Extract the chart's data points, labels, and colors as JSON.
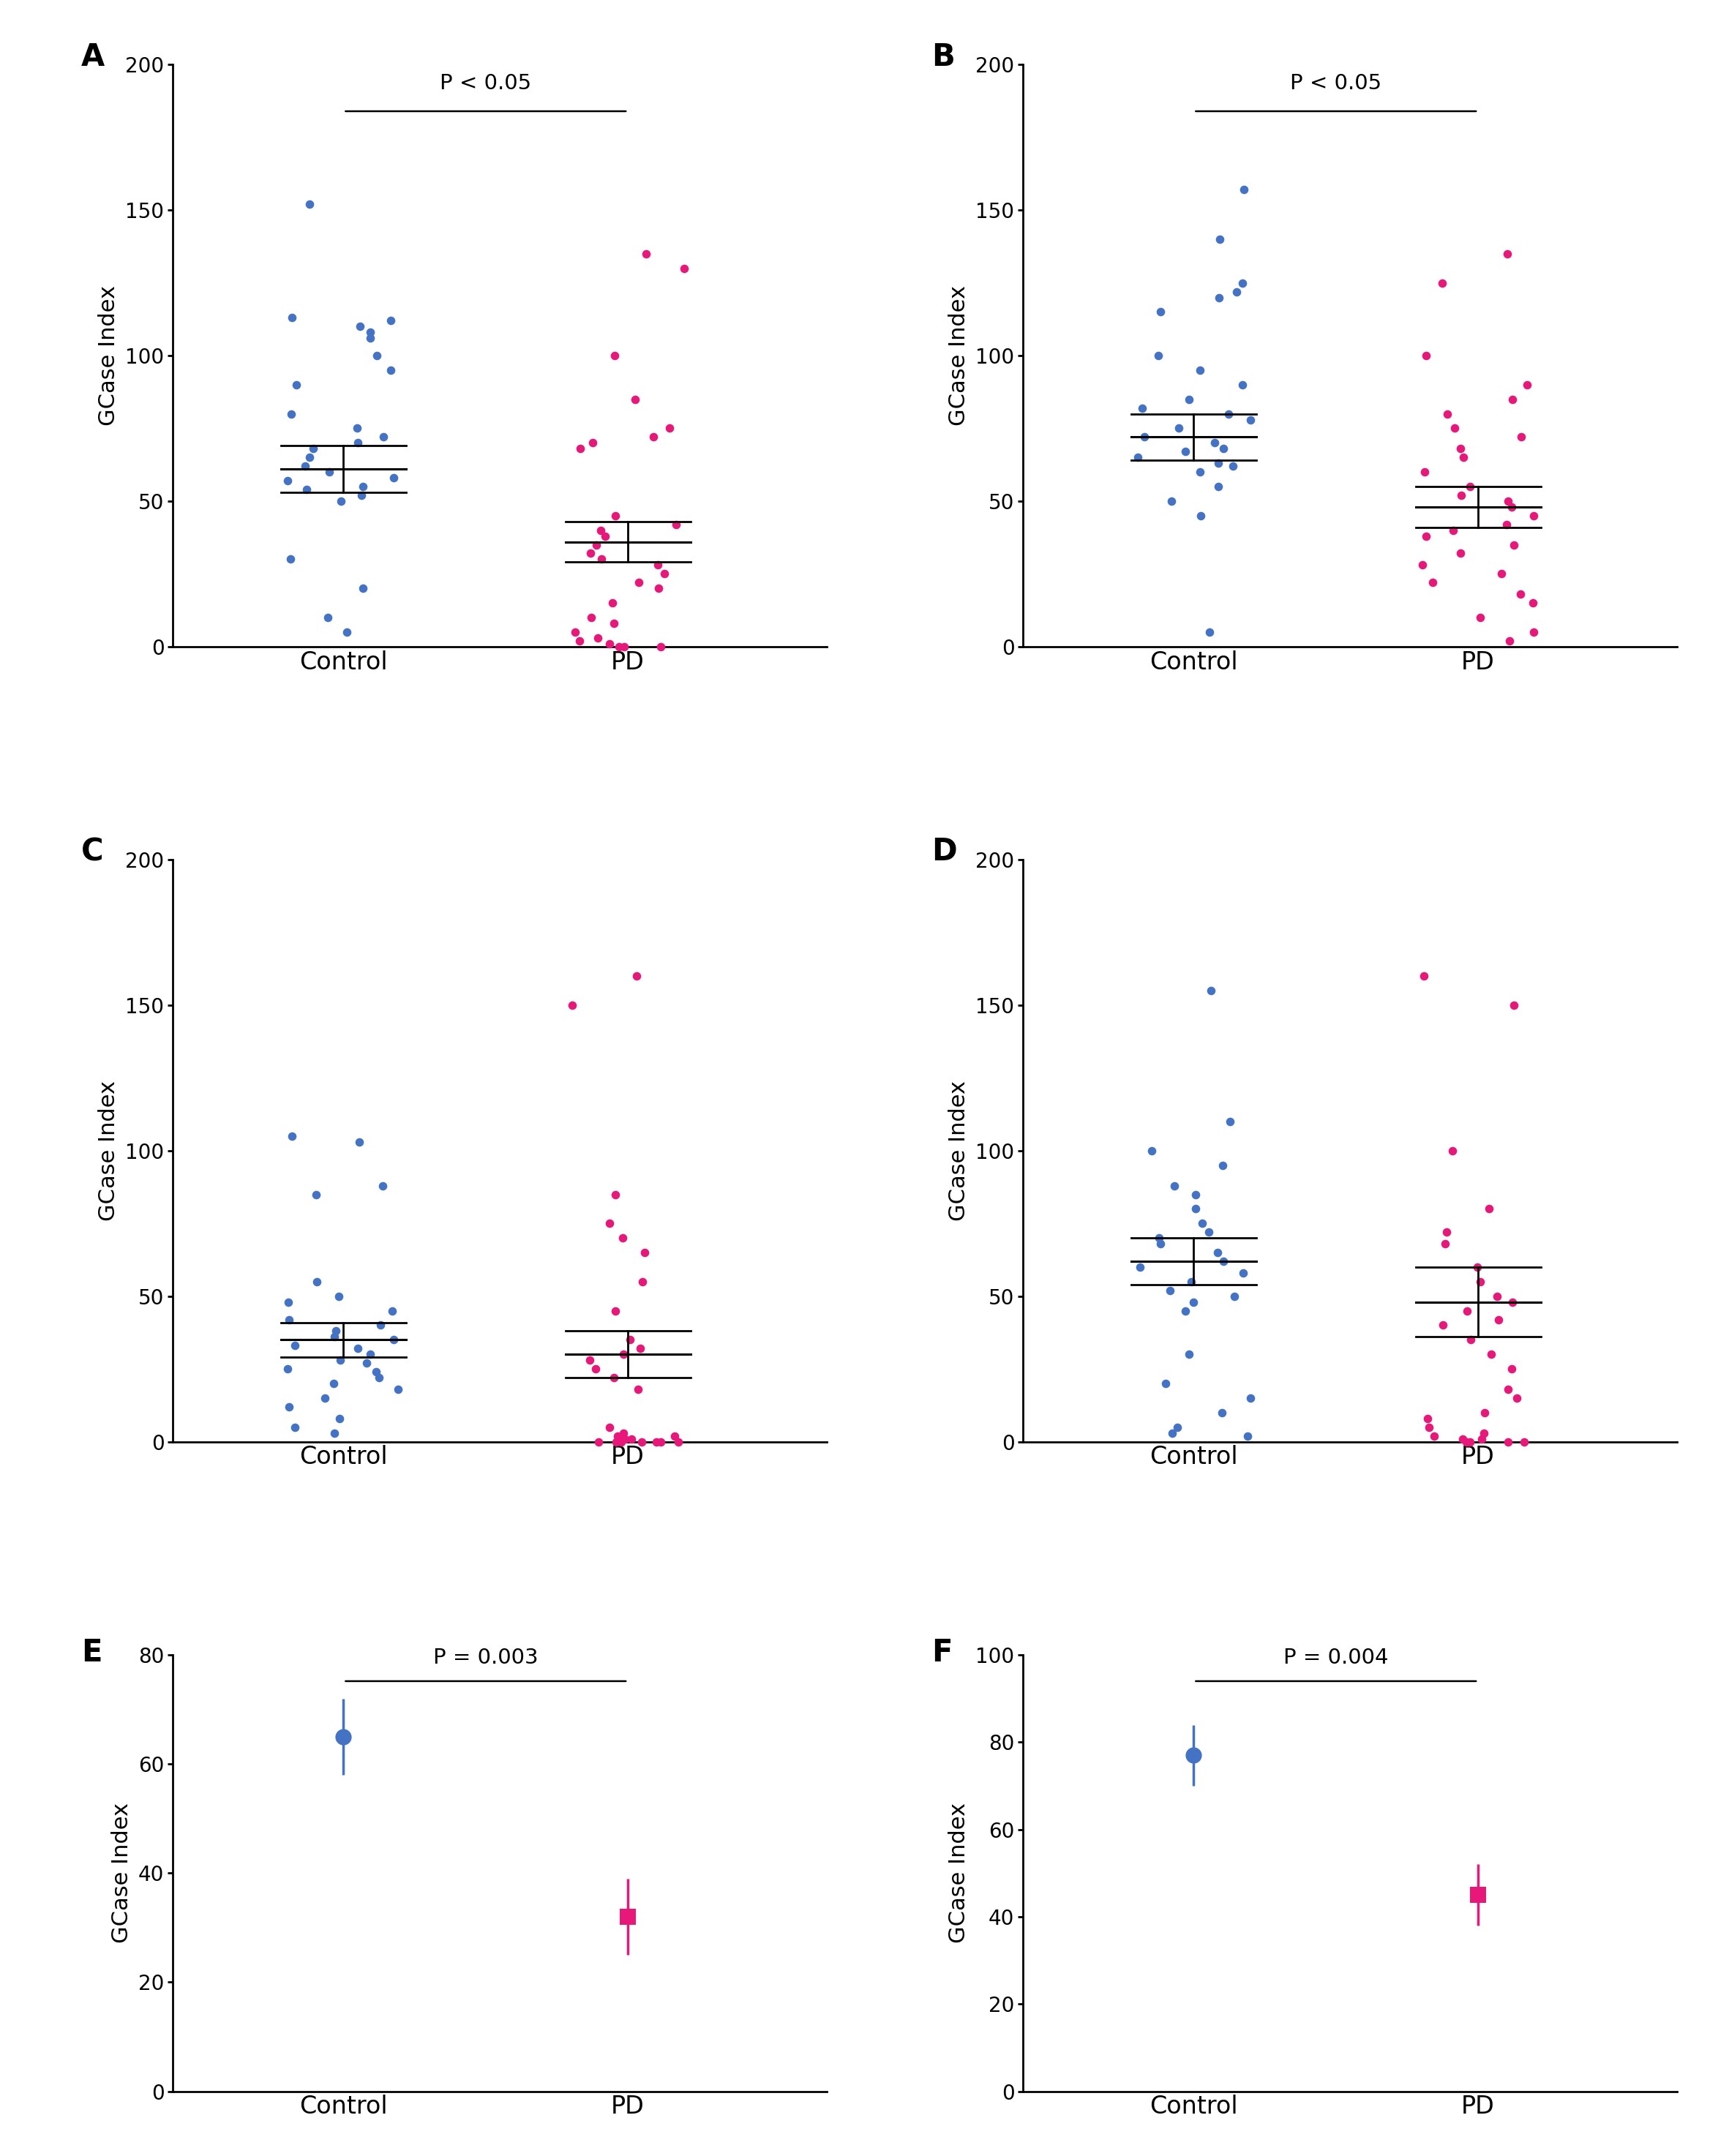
{
  "panel_A": {
    "label": "A",
    "control_data": [
      152,
      113,
      112,
      110,
      108,
      106,
      100,
      95,
      90,
      80,
      75,
      72,
      70,
      68,
      65,
      62,
      60,
      58,
      57,
      55,
      54,
      52,
      50,
      30,
      20,
      10,
      5
    ],
    "pd_data": [
      135,
      130,
      100,
      85,
      75,
      72,
      70,
      68,
      45,
      42,
      40,
      38,
      35,
      32,
      30,
      28,
      25,
      22,
      20,
      15,
      10,
      8,
      5,
      3,
      2,
      1,
      0,
      0,
      0
    ],
    "control_mean": 61,
    "control_sem": 8,
    "pd_mean": 36,
    "pd_sem": 7,
    "pvalue": "P < 0.05",
    "ylabel": "GCase Index",
    "ylim": [
      0,
      200
    ],
    "yticks": [
      0,
      50,
      100,
      150,
      200
    ]
  },
  "panel_B": {
    "label": "B",
    "control_data": [
      157,
      140,
      125,
      122,
      120,
      115,
      100,
      95,
      90,
      85,
      82,
      80,
      78,
      75,
      72,
      70,
      68,
      67,
      65,
      63,
      62,
      60,
      55,
      50,
      45,
      5
    ],
    "pd_data": [
      135,
      125,
      100,
      90,
      85,
      80,
      75,
      72,
      68,
      65,
      60,
      55,
      52,
      50,
      48,
      45,
      42,
      40,
      38,
      35,
      32,
      28,
      25,
      22,
      18,
      15,
      10,
      5,
      2
    ],
    "control_mean": 72,
    "control_sem": 8,
    "pd_mean": 48,
    "pd_sem": 7,
    "pvalue": "P < 0.05",
    "ylabel": "GCase Index",
    "ylim": [
      0,
      200
    ],
    "yticks": [
      0,
      50,
      100,
      150,
      200
    ]
  },
  "panel_C": {
    "label": "C",
    "control_data": [
      103,
      105,
      88,
      85,
      55,
      50,
      48,
      45,
      42,
      40,
      38,
      36,
      35,
      33,
      32,
      30,
      28,
      27,
      25,
      24,
      22,
      20,
      18,
      15,
      12,
      8,
      5,
      3
    ],
    "pd_data": [
      160,
      150,
      85,
      75,
      70,
      65,
      55,
      45,
      35,
      32,
      30,
      28,
      25,
      22,
      18,
      5,
      3,
      2,
      2,
      1,
      1,
      1,
      0,
      0,
      0,
      0,
      0,
      0,
      0
    ],
    "control_mean": 35,
    "control_sem": 6,
    "pd_mean": 30,
    "pd_sem": 8,
    "pvalue": null,
    "ylabel": "GCase Index",
    "ylim": [
      0,
      200
    ],
    "yticks": [
      0,
      50,
      100,
      150,
      200
    ]
  },
  "panel_D": {
    "label": "D",
    "control_data": [
      155,
      110,
      100,
      95,
      88,
      85,
      80,
      75,
      72,
      70,
      68,
      65,
      62,
      60,
      58,
      55,
      52,
      50,
      48,
      45,
      30,
      20,
      15,
      10,
      5,
      3,
      2
    ],
    "pd_data": [
      160,
      150,
      100,
      80,
      72,
      68,
      60,
      55,
      50,
      48,
      45,
      42,
      40,
      35,
      30,
      25,
      18,
      15,
      10,
      8,
      5,
      3,
      2,
      1,
      1,
      0,
      0,
      0,
      0
    ],
    "control_mean": 62,
    "control_sem": 8,
    "pd_mean": 48,
    "pd_sem": 12,
    "pvalue": null,
    "ylabel": "GCase Index",
    "ylim": [
      0,
      200
    ],
    "yticks": [
      0,
      50,
      100,
      150,
      200
    ]
  },
  "panel_E": {
    "label": "E",
    "control_mean": 65,
    "control_sem_low": 7,
    "control_sem_high": 7,
    "pd_mean": 32,
    "pd_sem_low": 7,
    "pd_sem_high": 7,
    "pvalue": "P = 0.003",
    "ylabel": "GCase Index",
    "ylim": [
      0,
      80
    ],
    "yticks": [
      0,
      20,
      40,
      60,
      80
    ]
  },
  "panel_F": {
    "label": "F",
    "control_mean": 77,
    "control_sem_low": 7,
    "control_sem_high": 7,
    "pd_mean": 45,
    "pd_sem_low": 7,
    "pd_sem_high": 7,
    "pvalue": "P = 0.004",
    "ylabel": "GCase Index",
    "ylim": [
      0,
      100
    ],
    "yticks": [
      0,
      20,
      40,
      60,
      80,
      100
    ]
  },
  "blue_color": "#4472C4",
  "pink_color": "#E8177A",
  "dot_size": 70,
  "tick_fontsize": 20,
  "ylabel_fontsize": 22,
  "xlabel_fontsize": 24,
  "pvalue_fontsize": 21,
  "panel_label_fontsize": 30
}
